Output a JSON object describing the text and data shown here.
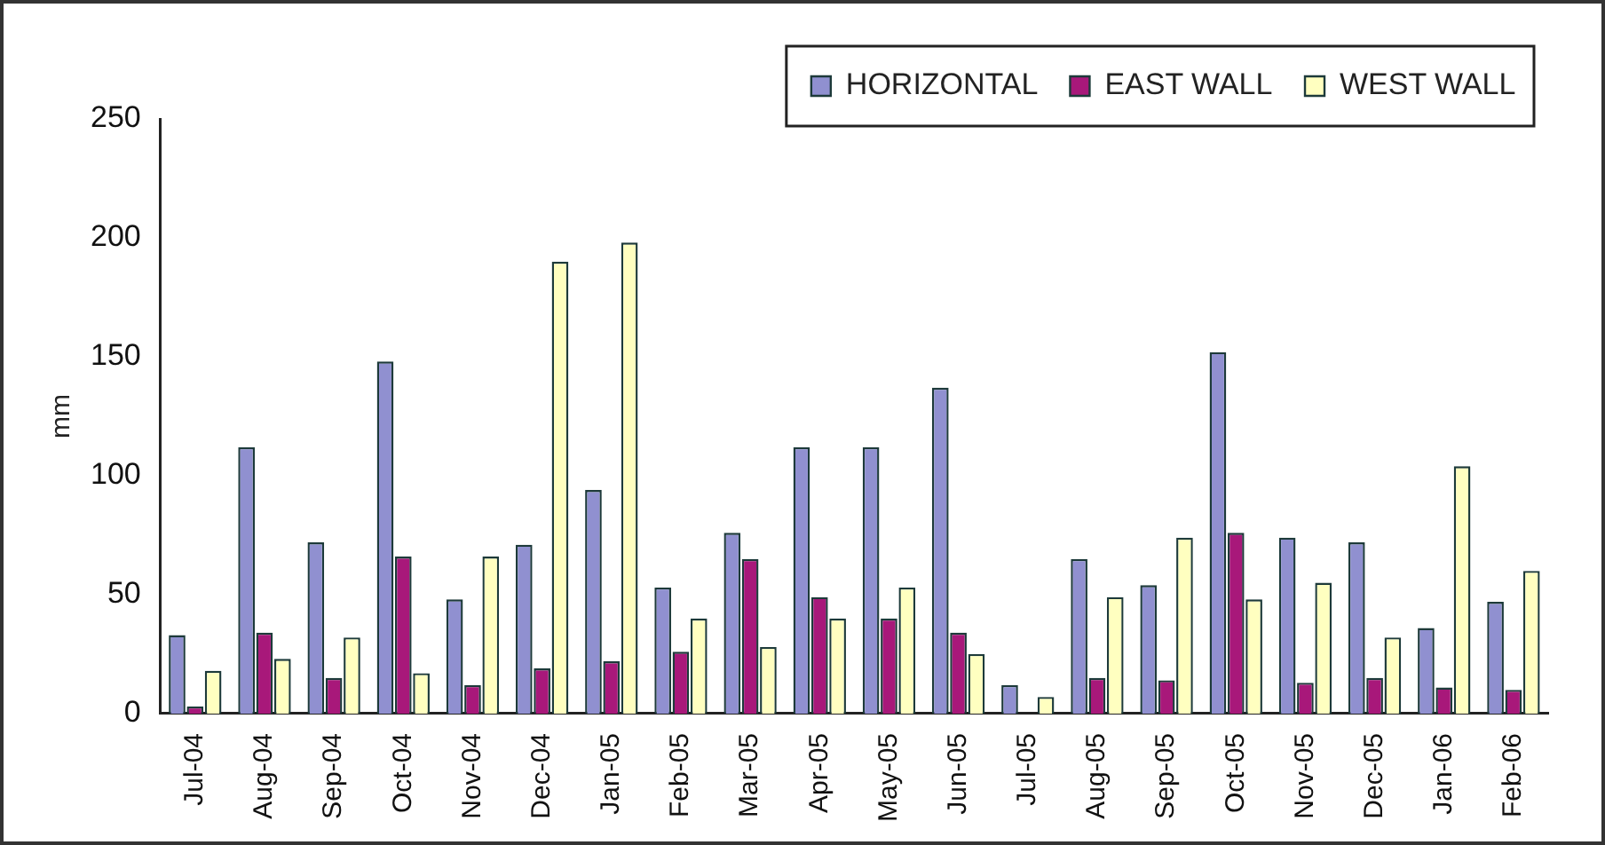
{
  "chart_data": {
    "type": "bar",
    "ylabel": "mm",
    "categories": [
      "Jul-04",
      "Aug-04",
      "Sep-04",
      "Oct-04",
      "Nov-04",
      "Dec-04",
      "Jan-05",
      "Feb-05",
      "Mar-05",
      "Apr-05",
      "May-05",
      "Jun-05",
      "Jul-05",
      "Aug-05",
      "Sep-05",
      "Oct-05",
      "Nov-05",
      "Dec-05",
      "Jan-06",
      "Feb-06"
    ],
    "series": [
      {
        "name": "HORIZONTAL",
        "color": "#9090d0",
        "values": [
          33,
          112,
          72,
          148,
          48,
          71,
          94,
          53,
          76,
          112,
          112,
          137,
          12,
          65,
          54,
          152,
          74,
          72,
          36,
          47
        ]
      },
      {
        "name": "EAST WALL",
        "color": "#a8187a",
        "values": [
          3,
          34,
          15,
          66,
          12,
          19,
          22,
          26,
          65,
          49,
          40,
          34,
          0,
          15,
          14,
          76,
          13,
          15,
          11,
          10
        ]
      },
      {
        "name": "WEST WALL",
        "color": "#ffffc0",
        "values": [
          18,
          23,
          32,
          17,
          66,
          190,
          198,
          40,
          28,
          40,
          53,
          25,
          7,
          49,
          74,
          48,
          55,
          32,
          104,
          60
        ]
      }
    ],
    "ylim": [
      0,
      250
    ],
    "yticks": [
      0,
      50,
      100,
      150,
      200,
      250
    ],
    "grid": false,
    "legend": "top right"
  }
}
